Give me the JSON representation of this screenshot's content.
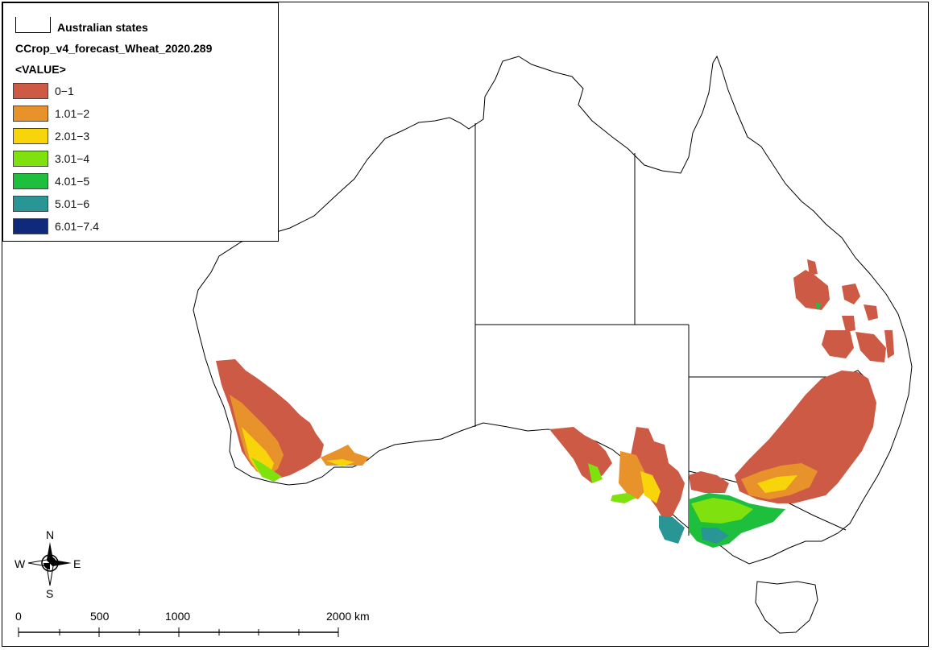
{
  "legend": {
    "boundary_label": "Australian states",
    "layer_title": "CCrop_v4_forecast_Wheat_2020.289",
    "field_label": "<VALUE>",
    "classes": [
      {
        "label": "0−1",
        "color": "#cd5a44"
      },
      {
        "label": "1.01−2",
        "color": "#e8922b"
      },
      {
        "label": "2.01−3",
        "color": "#f8d40b"
      },
      {
        "label": "3.01−4",
        "color": "#7fe10d"
      },
      {
        "label": "4.01−5",
        "color": "#1fbf3e"
      },
      {
        "label": "5.01−6",
        "color": "#2a9595"
      },
      {
        "label": "6.01−7.4",
        "color": "#0f2a7a"
      }
    ]
  },
  "compass": {
    "north": "N",
    "south": "S",
    "east": "E",
    "west": "W"
  },
  "scalebar": {
    "labels": [
      "0",
      "500",
      "1000",
      "2000 km"
    ]
  },
  "colors": {
    "outline": "#000000",
    "background": "#ffffff"
  }
}
